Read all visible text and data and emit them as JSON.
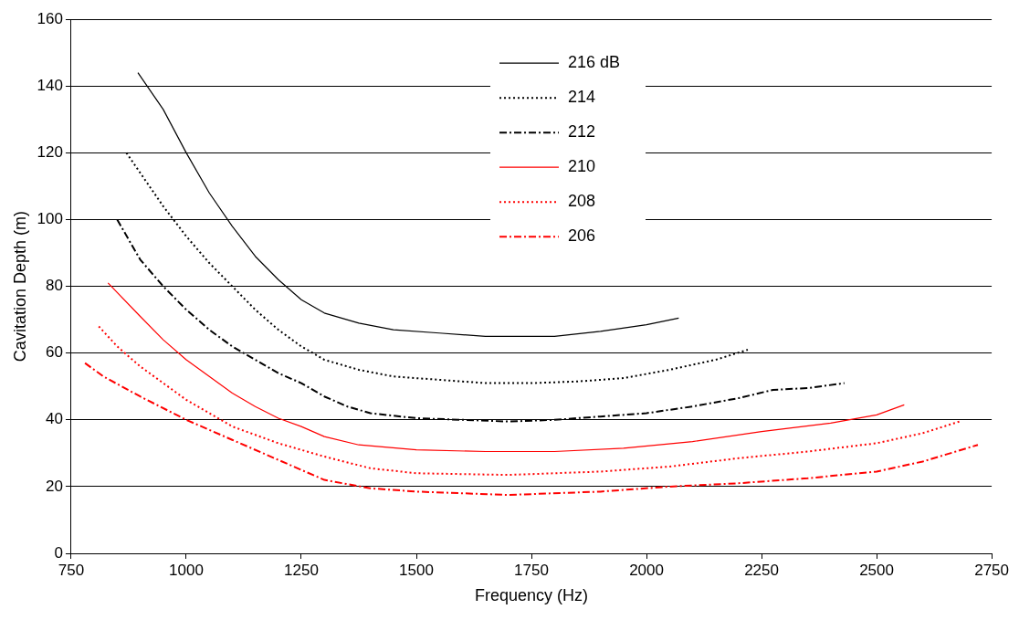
{
  "chart_data": {
    "type": "line",
    "xlabel": "Frequency (Hz)",
    "ylabel": "Cavitation Depth (m)",
    "xlim": [
      750,
      2750
    ],
    "xticks": [
      750,
      1000,
      1250,
      1500,
      1750,
      2000,
      2250,
      2500,
      2750
    ],
    "ylim": [
      0,
      160
    ],
    "yticks": [
      0,
      20,
      40,
      60,
      80,
      100,
      120,
      140,
      160
    ],
    "grid": "y",
    "legend": "top",
    "marker": "none",
    "series": [
      {
        "name": "216 dB",
        "color": "#000000",
        "line_style": "solid",
        "x": [
          895,
          950,
          1000,
          1050,
          1100,
          1150,
          1200,
          1250,
          1300,
          1375,
          1450,
          1550,
          1650,
          1800,
          1900,
          2000,
          2070
        ],
        "values": [
          144,
          133,
          120,
          108,
          98,
          89,
          82,
          76,
          72,
          69,
          67,
          66,
          65,
          65,
          66.5,
          68.5,
          70.5
        ]
      },
      {
        "name": "214",
        "color": "#000000",
        "line_style": "dotted",
        "x": [
          870,
          950,
          1000,
          1050,
          1100,
          1150,
          1200,
          1250,
          1300,
          1375,
          1450,
          1550,
          1650,
          1750,
          1850,
          1950,
          2050,
          2150,
          2220
        ],
        "values": [
          120,
          104,
          95,
          87,
          80,
          73,
          67,
          62,
          58,
          55,
          53,
          52,
          51,
          51,
          51.5,
          52.5,
          55,
          58,
          61
        ]
      },
      {
        "name": "212",
        "color": "#000000",
        "line_style": "dashed",
        "x": [
          850,
          900,
          950,
          1000,
          1050,
          1100,
          1150,
          1200,
          1250,
          1300,
          1350,
          1400,
          1500,
          1600,
          1700,
          1800,
          1900,
          2000,
          2100,
          2200,
          2275,
          2350,
          2430
        ],
        "values": [
          100,
          88,
          80,
          73,
          67,
          62,
          58,
          54,
          51,
          47,
          44,
          42,
          40.5,
          40,
          39.5,
          40,
          41,
          42,
          44,
          46.5,
          49,
          49.5,
          51
        ]
      },
      {
        "name": "210",
        "color": "#ff0000",
        "line_style": "solid",
        "x": [
          830,
          900,
          950,
          1000,
          1050,
          1100,
          1150,
          1200,
          1250,
          1300,
          1375,
          1500,
          1650,
          1800,
          1950,
          2100,
          2250,
          2400,
          2500,
          2560
        ],
        "values": [
          81,
          71,
          64,
          58,
          53,
          48,
          44,
          40.5,
          38,
          35,
          32.5,
          31,
          30.5,
          30.5,
          31.5,
          33.5,
          36.5,
          39,
          41.5,
          44.5
        ]
      },
      {
        "name": "208",
        "color": "#ff0000",
        "line_style": "dotted",
        "x": [
          810,
          850,
          900,
          950,
          1000,
          1050,
          1100,
          1200,
          1300,
          1400,
          1500,
          1700,
          1900,
          2050,
          2200,
          2350,
          2500,
          2600,
          2680
        ],
        "values": [
          68,
          62,
          56,
          51,
          46,
          42,
          38,
          33,
          29,
          25.5,
          24,
          23.5,
          24.5,
          26,
          28.5,
          30.5,
          33,
          36,
          39.5
        ]
      },
      {
        "name": "206",
        "color": "#ff0000",
        "line_style": "dashed",
        "x": [
          780,
          820,
          900,
          1000,
          1100,
          1200,
          1300,
          1400,
          1500,
          1700,
          1900,
          2050,
          2200,
          2350,
          2500,
          2600,
          2720
        ],
        "values": [
          57,
          53,
          47,
          40,
          34,
          28,
          22,
          19.5,
          18.5,
          17.5,
          18.5,
          20,
          21,
          22.5,
          24.5,
          27.5,
          32.5
        ]
      }
    ]
  }
}
